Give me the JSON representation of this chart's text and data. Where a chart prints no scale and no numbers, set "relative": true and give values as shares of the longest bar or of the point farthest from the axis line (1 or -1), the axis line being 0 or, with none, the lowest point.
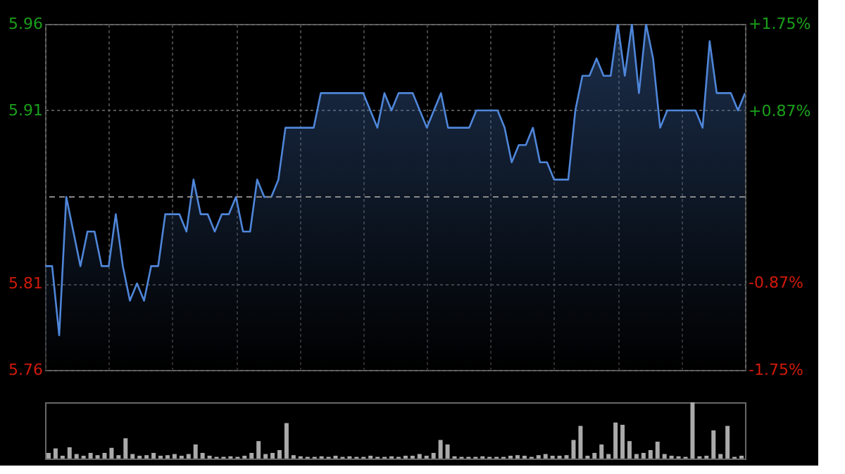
{
  "chart_data": [
    {
      "type": "area",
      "categories": [
        null,
        null,
        null,
        null,
        null,
        null,
        null,
        null,
        null,
        null,
        null,
        null,
        null,
        null,
        null,
        null,
        null,
        null,
        null,
        null,
        null,
        null,
        null,
        null,
        null,
        null,
        null,
        null,
        null,
        null,
        null,
        null,
        null,
        null,
        null,
        null,
        null,
        null,
        null,
        null,
        null,
        null,
        null,
        null,
        null,
        null,
        null,
        null,
        null,
        null,
        null,
        null,
        null,
        null,
        null,
        null,
        null,
        null,
        null,
        null,
        null,
        null,
        null,
        null,
        null,
        null,
        null,
        null,
        null,
        null,
        null,
        null,
        null,
        null,
        null,
        null,
        null,
        null,
        null,
        null,
        null,
        null,
        null,
        null,
        null,
        null,
        null,
        null,
        null,
        null,
        null,
        null,
        null,
        null,
        null,
        null,
        null,
        null,
        null,
        null
      ],
      "series": [
        {
          "color": "#4f86d9",
          "values": [
            5.82,
            5.82,
            5.78,
            5.86,
            5.84,
            5.82,
            5.84,
            5.84,
            5.82,
            5.82,
            5.85,
            5.82,
            5.8,
            5.81,
            5.8,
            5.82,
            5.82,
            5.85,
            5.85,
            5.85,
            5.84,
            5.87,
            5.85,
            5.85,
            5.84,
            5.85,
            5.85,
            5.86,
            5.84,
            5.84,
            5.87,
            5.86,
            5.86,
            5.87,
            5.9,
            5.9,
            5.9,
            5.9,
            5.9,
            5.92,
            5.92,
            5.92,
            5.92,
            5.92,
            5.92,
            5.92,
            5.91,
            5.9,
            5.92,
            5.91,
            5.92,
            5.92,
            5.92,
            5.91,
            5.9,
            5.91,
            5.92,
            5.9,
            5.9,
            5.9,
            5.9,
            5.91,
            5.91,
            5.91,
            5.91,
            5.9,
            5.88,
            5.89,
            5.89,
            5.9,
            5.88,
            5.88,
            5.87,
            5.87,
            5.87,
            5.91,
            5.93,
            5.93,
            5.94,
            5.93,
            5.93,
            5.96,
            5.93,
            5.96,
            5.92,
            5.96,
            5.94,
            5.9,
            5.91,
            5.91,
            5.91,
            5.91,
            5.91,
            5.9,
            5.95,
            5.92,
            5.92,
            5.92,
            5.91,
            5.92
          ]
        }
      ],
      "ylim": [
        5.76,
        5.96
      ],
      "yticks": [
        5.96,
        5.91,
        5.81,
        5.76
      ],
      "y2lim": [
        -1.75,
        1.75
      ],
      "y2ticks": [
        {
          "value": 1.75,
          "label": "+1.75%"
        },
        {
          "value": 0.87,
          "label": "+0.87%"
        },
        {
          "value": -0.87,
          "label": "-0.87%"
        },
        {
          "value": -1.75,
          "label": "-1.75%"
        }
      ],
      "ref_lines": [
        {
          "axis": "y2",
          "value": 0,
          "line_style": "dashed",
          "color": "#888888"
        }
      ],
      "grid": true,
      "line_style": "solid"
    },
    {
      "type": "bar",
      "relative": true,
      "categories": [
        null,
        null,
        null,
        null,
        null,
        null,
        null,
        null,
        null,
        null,
        null,
        null,
        null,
        null,
        null,
        null,
        null,
        null,
        null,
        null,
        null,
        null,
        null,
        null,
        null,
        null,
        null,
        null,
        null,
        null,
        null,
        null,
        null,
        null,
        null,
        null,
        null,
        null,
        null,
        null,
        null,
        null,
        null,
        null,
        null,
        null,
        null,
        null,
        null,
        null,
        null,
        null,
        null,
        null,
        null,
        null,
        null,
        null,
        null,
        null,
        null,
        null,
        null,
        null,
        null,
        null,
        null,
        null,
        null,
        null,
        null,
        null,
        null,
        null,
        null,
        null,
        null,
        null,
        null,
        null,
        null,
        null,
        null,
        null,
        null,
        null,
        null,
        null,
        null,
        null,
        null,
        null,
        null,
        null,
        null,
        null,
        null,
        null,
        null,
        null
      ],
      "color": "#aaaaaa",
      "values": [
        0.1,
        0.18,
        0.05,
        0.2,
        0.08,
        0.05,
        0.1,
        0.06,
        0.1,
        0.19,
        0.06,
        0.36,
        0.08,
        0.05,
        0.06,
        0.1,
        0.05,
        0.06,
        0.08,
        0.05,
        0.08,
        0.25,
        0.1,
        0.05,
        0.03,
        0.03,
        0.04,
        0.03,
        0.05,
        0.1,
        0.31,
        0.08,
        0.1,
        0.15,
        0.63,
        0.06,
        0.04,
        0.03,
        0.03,
        0.04,
        0.03,
        0.05,
        0.03,
        0.04,
        0.03,
        0.03,
        0.05,
        0.03,
        0.03,
        0.04,
        0.03,
        0.05,
        0.05,
        0.08,
        0.05,
        0.1,
        0.33,
        0.25,
        0.04,
        0.03,
        0.03,
        0.03,
        0.04,
        0.03,
        0.03,
        0.03,
        0.05,
        0.06,
        0.05,
        0.03,
        0.06,
        0.08,
        0.05,
        0.05,
        0.06,
        0.33,
        0.58,
        0.05,
        0.1,
        0.25,
        0.08,
        0.64,
        0.6,
        0.31,
        0.08,
        0.1,
        0.15,
        0.3,
        0.08,
        0.05,
        0.04,
        0.03,
        1.0,
        0.04,
        0.05,
        0.5,
        0.08,
        0.58,
        0.03,
        0.05
      ]
    }
  ]
}
